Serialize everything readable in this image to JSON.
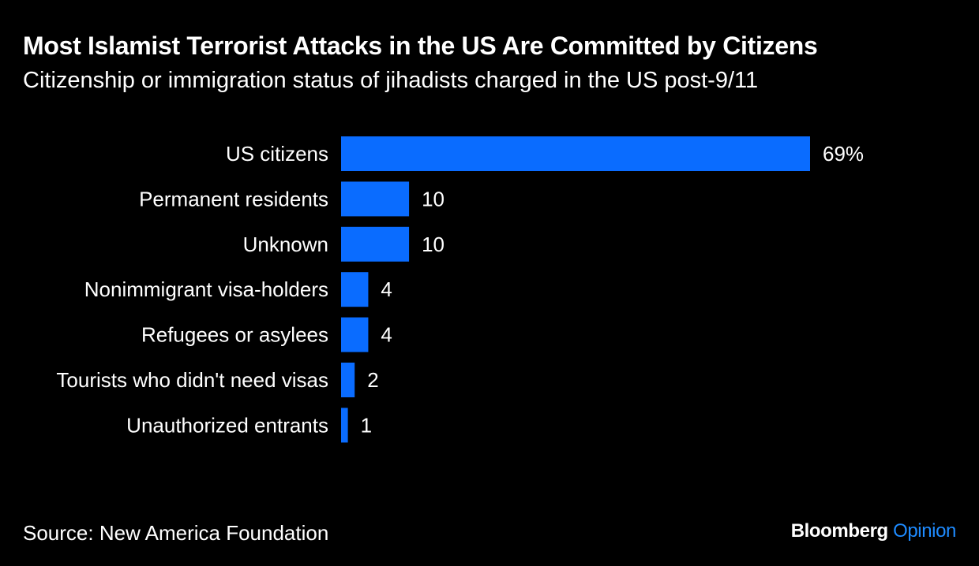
{
  "header": {
    "title": "Most Islamist Terrorist Attacks in the US Are Committed by Citizens",
    "subtitle": "Citizenship or immigration status of jihadists charged in the US post-9/11"
  },
  "footer": {
    "source": "Source: New America Foundation",
    "brand_name": "Bloomberg",
    "brand_section": "Opinion"
  },
  "colors": {
    "background": "#000000",
    "bar": "#0A6CFF",
    "text": "#FFFFFF",
    "brand_accent": "#1E8BFF"
  },
  "chart_data": {
    "type": "bar",
    "orientation": "horizontal",
    "categories": [
      "US citizens",
      "Permanent residents",
      "Unknown",
      "Nonimmigrant visa-holders",
      "Refugees or asylees",
      "Tourists who didn't need visas",
      "Unauthorized entrants"
    ],
    "values": [
      69,
      10,
      10,
      4,
      4,
      2,
      1
    ],
    "value_labels": [
      "69%",
      "10",
      "10",
      "4",
      "4",
      "2",
      "1"
    ],
    "title": "Most Islamist Terrorist Attacks in the US Are Committed by Citizens",
    "subtitle": "Citizenship or immigration status of jihadists charged in the US post-9/11",
    "xlabel": "",
    "ylabel": "",
    "xlim": [
      0,
      69
    ],
    "grid": false,
    "legend": false
  }
}
